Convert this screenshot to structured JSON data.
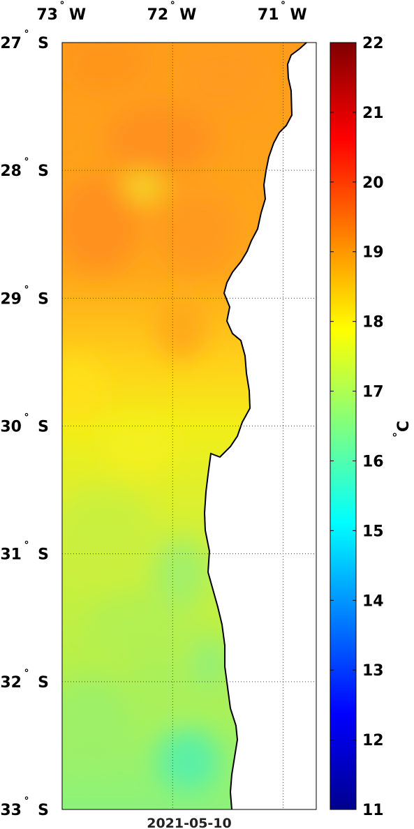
{
  "map": {
    "lon_labels": [
      {
        "deg": "73",
        "hemi": "W",
        "value": -73
      },
      {
        "deg": "72",
        "hemi": "W",
        "value": -72
      },
      {
        "deg": "71",
        "hemi": "W",
        "value": -71
      }
    ],
    "lat_labels": [
      {
        "deg": "27",
        "hemi": "S",
        "value": -27
      },
      {
        "deg": "28",
        "hemi": "S",
        "value": -28
      },
      {
        "deg": "29",
        "hemi": "S",
        "value": -29
      },
      {
        "deg": "30",
        "hemi": "S",
        "value": -30
      },
      {
        "deg": "31",
        "hemi": "S",
        "value": -31
      },
      {
        "deg": "32",
        "hemi": "S",
        "value": -32
      },
      {
        "deg": "33",
        "hemi": "S",
        "value": -33
      }
    ],
    "lon_range": [
      -73.0,
      -70.7
    ],
    "lat_range": [
      -33.0,
      -27.0
    ],
    "grid": "dotted",
    "date": "2021-05-10",
    "land_color": "#ffffff",
    "coastline_color": "#000000"
  },
  "colorbar": {
    "min": 11,
    "max": 22,
    "ticks": [
      "11",
      "12",
      "13",
      "14",
      "15",
      "16",
      "17",
      "18",
      "19",
      "20",
      "21",
      "22"
    ],
    "unit_degree": "°",
    "unit_letter": "C",
    "colormap": "jet"
  }
}
